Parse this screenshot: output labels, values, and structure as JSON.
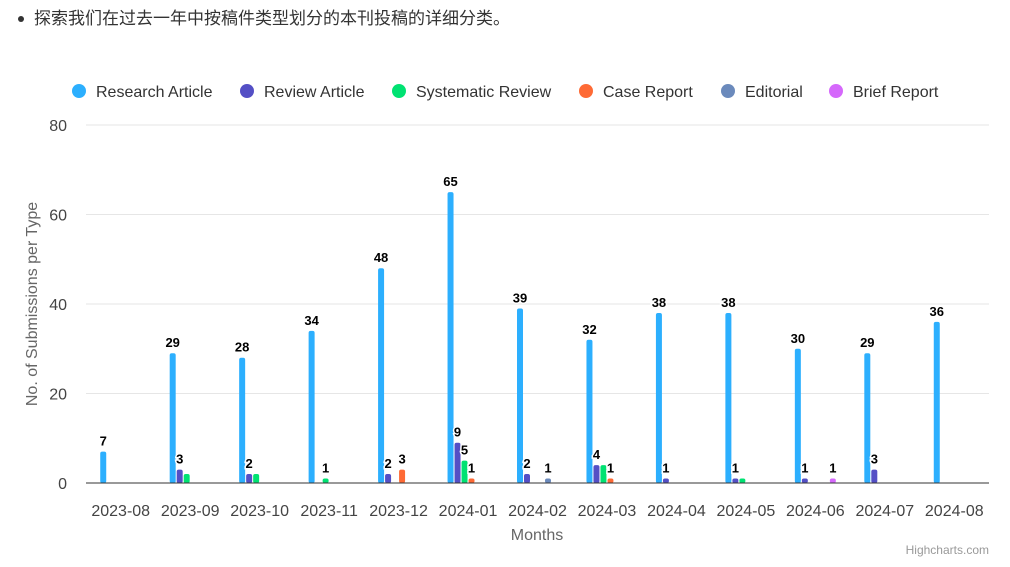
{
  "intro_text": "探索我们在过去一年中按稿件类型划分的本刊投稿的详细分类。",
  "credits": "Highcharts.com",
  "chart_data": {
    "type": "bar",
    "title": "",
    "xlabel": "Months",
    "ylabel": "No. of Submissions per Type",
    "ylim": [
      0,
      80
    ],
    "yticks": [
      0,
      20,
      40,
      60,
      80
    ],
    "grid": true,
    "legend_position": "top",
    "categories": [
      "2023-08",
      "2023-09",
      "2023-10",
      "2023-11",
      "2023-12",
      "2024-01",
      "2024-02",
      "2024-03",
      "2024-04",
      "2024-05",
      "2024-06",
      "2024-07",
      "2024-08"
    ],
    "series": [
      {
        "name": "Research Article",
        "color": "#2caffe",
        "values": [
          7,
          29,
          28,
          34,
          48,
          65,
          39,
          32,
          38,
          38,
          30,
          29,
          36
        ]
      },
      {
        "name": "Review Article",
        "color": "#544fc5",
        "values": [
          0,
          3,
          2,
          0,
          2,
          9,
          2,
          4,
          1,
          1,
          1,
          3,
          0
        ]
      },
      {
        "name": "Systematic Review",
        "color": "#00e272",
        "values": [
          0,
          2,
          2,
          1,
          0,
          5,
          0,
          4,
          0,
          1,
          0,
          0,
          0
        ]
      },
      {
        "name": "Case Report",
        "color": "#fe6a35",
        "values": [
          0,
          0,
          0,
          0,
          3,
          1,
          0,
          1,
          0,
          0,
          0,
          0,
          0
        ]
      },
      {
        "name": "Editorial",
        "color": "#6b8abc",
        "values": [
          0,
          0,
          0,
          0,
          0,
          0,
          1,
          0,
          0,
          0,
          0,
          0,
          0
        ]
      },
      {
        "name": "Brief Report",
        "color": "#d568fb",
        "values": [
          0,
          0,
          0,
          0,
          0,
          0,
          0,
          0,
          0,
          0,
          1,
          0,
          0
        ]
      }
    ],
    "data_labels": [
      {
        "category": 0,
        "series": 0,
        "text": "7"
      },
      {
        "category": 1,
        "series": 0,
        "text": "29"
      },
      {
        "category": 1,
        "series": 1,
        "text": "3"
      },
      {
        "category": 2,
        "series": 0,
        "text": "28"
      },
      {
        "category": 2,
        "series": 1,
        "text": "2"
      },
      {
        "category": 3,
        "series": 0,
        "text": "34"
      },
      {
        "category": 3,
        "series": 2,
        "text": "1"
      },
      {
        "category": 4,
        "series": 0,
        "text": "48"
      },
      {
        "category": 4,
        "series": 1,
        "text": "2"
      },
      {
        "category": 4,
        "series": 3,
        "text": "3"
      },
      {
        "category": 5,
        "series": 0,
        "text": "65"
      },
      {
        "category": 5,
        "series": 1,
        "text": "9"
      },
      {
        "category": 5,
        "series": 2,
        "text": "5"
      },
      {
        "category": 5,
        "series": 3,
        "text": "1"
      },
      {
        "category": 6,
        "series": 0,
        "text": "39"
      },
      {
        "category": 6,
        "series": 1,
        "text": "2"
      },
      {
        "category": 6,
        "series": 4,
        "text": "1"
      },
      {
        "category": 7,
        "series": 0,
        "text": "32"
      },
      {
        "category": 7,
        "series": 1,
        "text": "4"
      },
      {
        "category": 7,
        "series": 3,
        "text": "1"
      },
      {
        "category": 8,
        "series": 0,
        "text": "38"
      },
      {
        "category": 8,
        "series": 1,
        "text": "1"
      },
      {
        "category": 9,
        "series": 0,
        "text": "38"
      },
      {
        "category": 9,
        "series": 1,
        "text": "1"
      },
      {
        "category": 10,
        "series": 0,
        "text": "30"
      },
      {
        "category": 10,
        "series": 1,
        "text": "1"
      },
      {
        "category": 10,
        "series": 5,
        "text": "1"
      },
      {
        "category": 11,
        "series": 0,
        "text": "29"
      },
      {
        "category": 11,
        "series": 1,
        "text": "3"
      },
      {
        "category": 12,
        "series": 0,
        "text": "36"
      }
    ]
  }
}
